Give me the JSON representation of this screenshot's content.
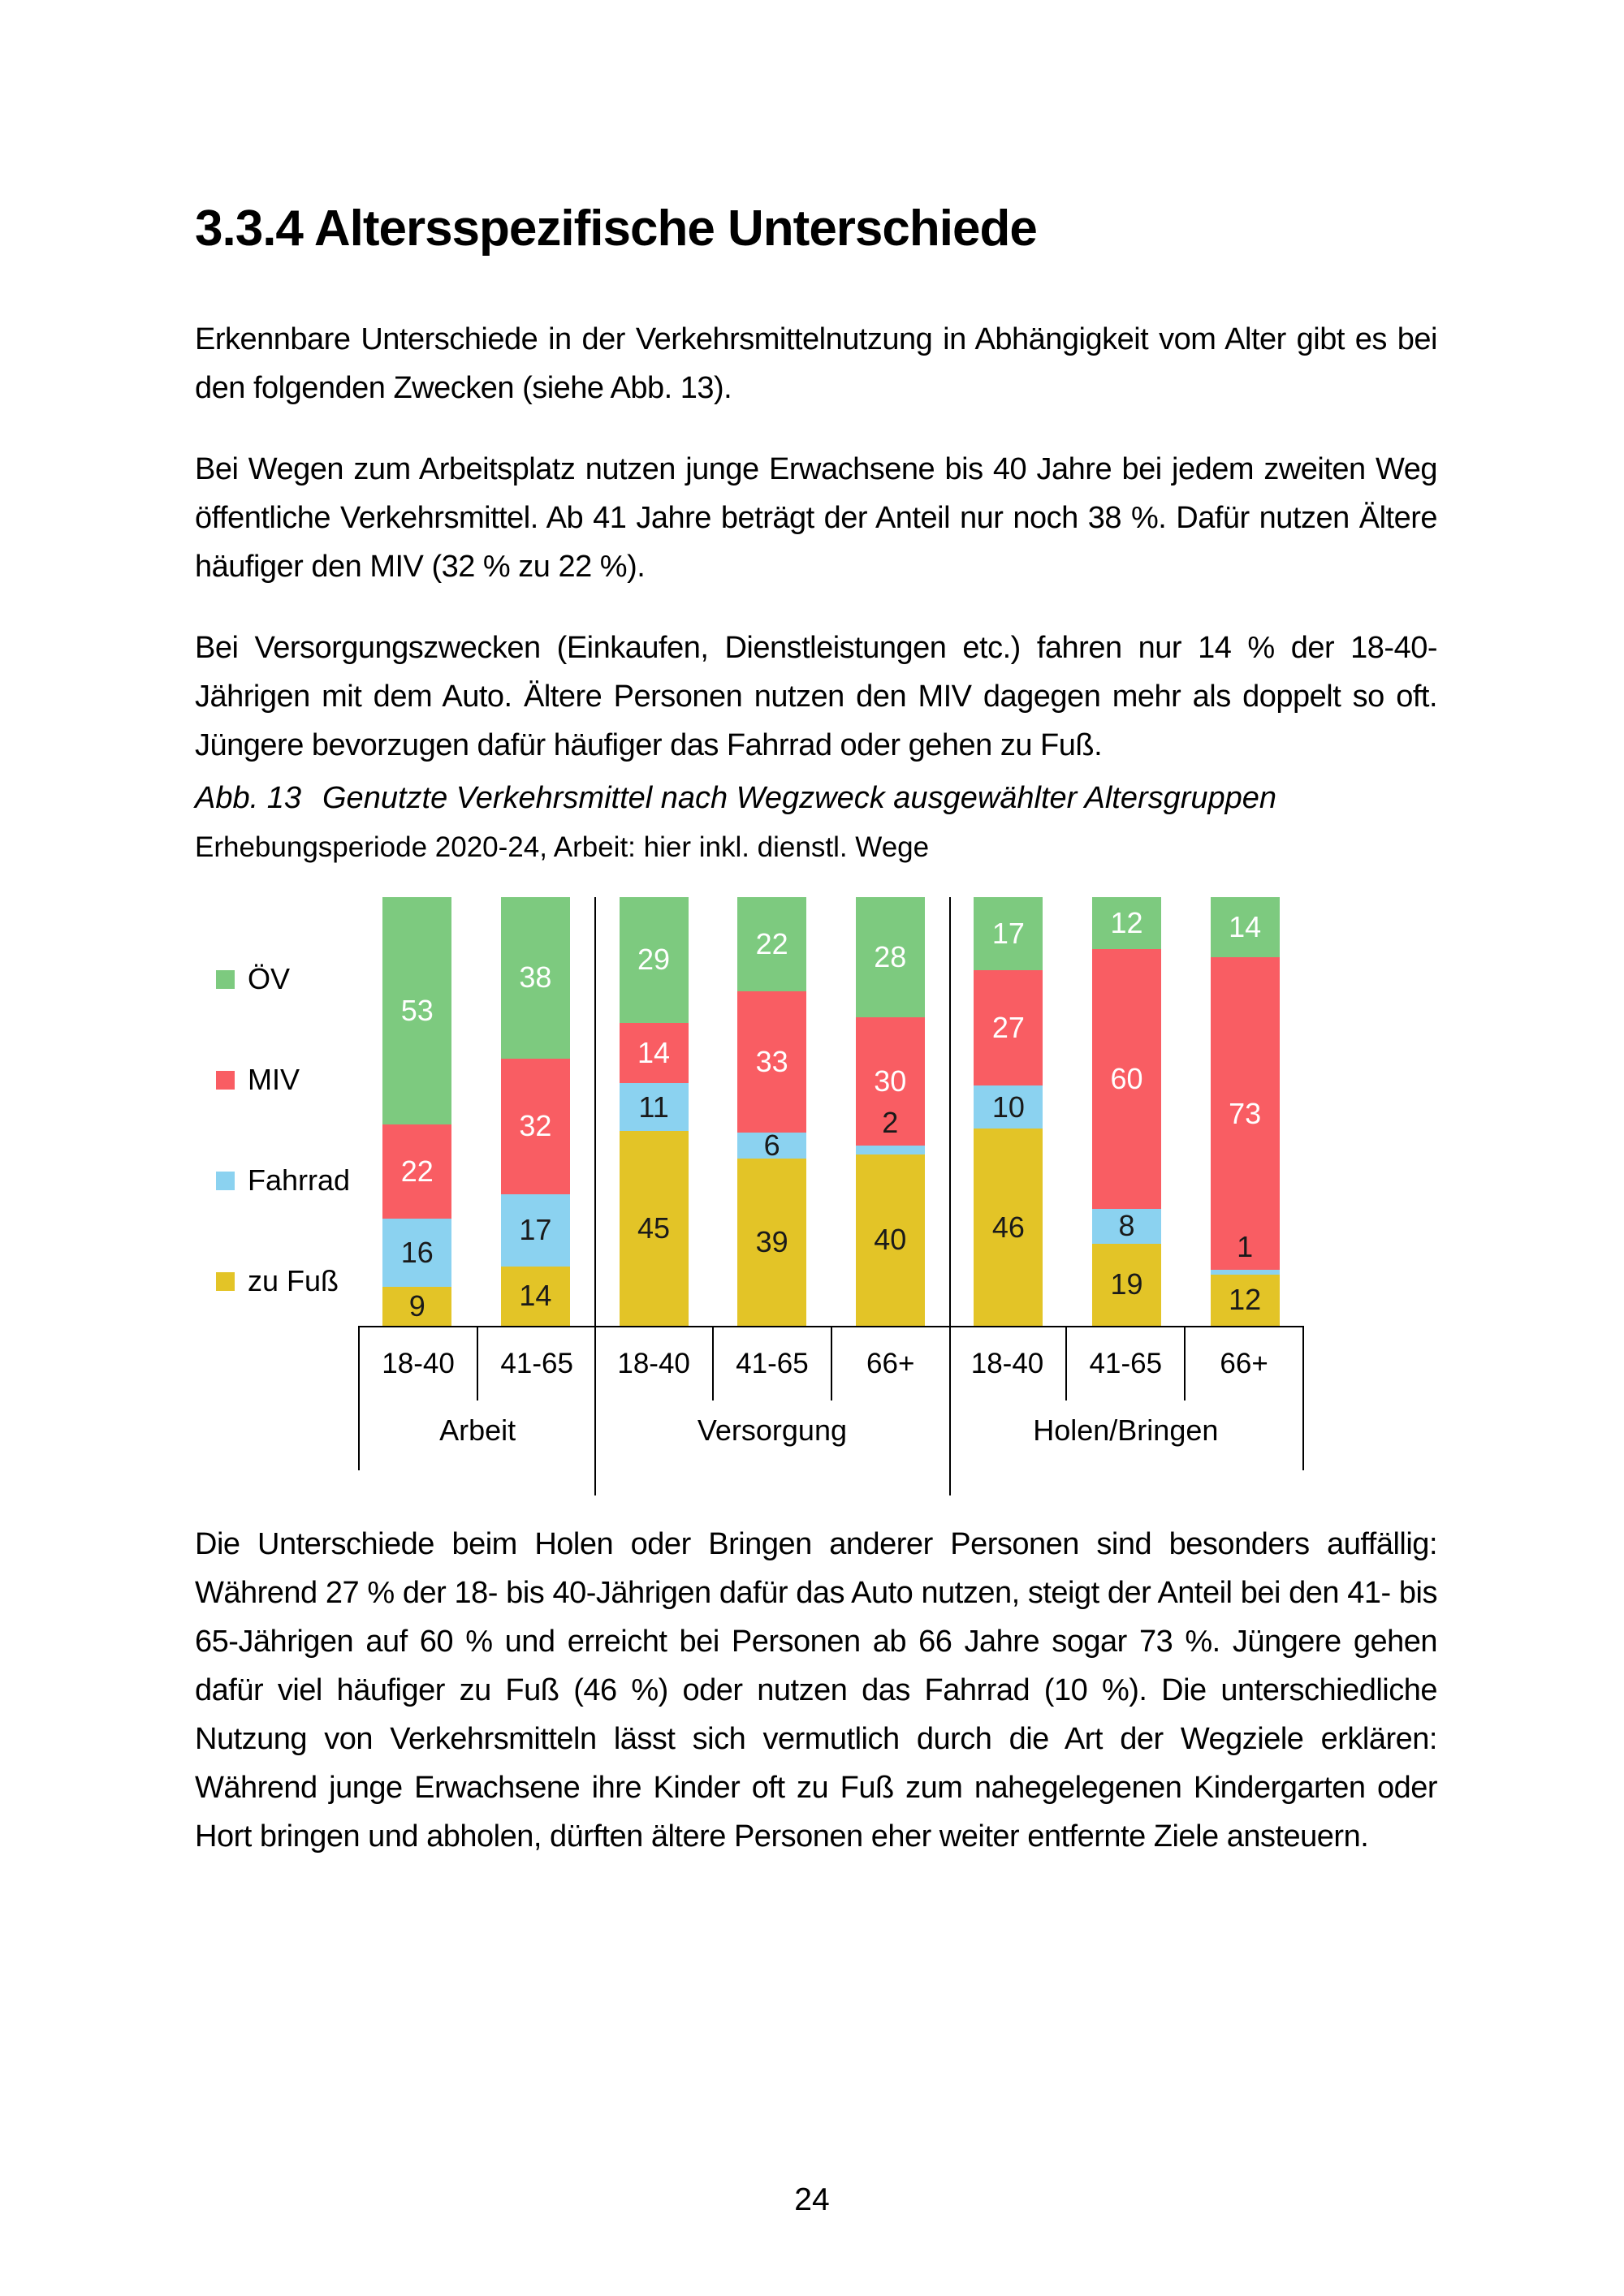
{
  "page": {
    "heading": "3.3.4 Altersspezifische Unterschiede",
    "paragraphs": [
      "Erkennbare Unterschiede in der Verkehrsmittelnutzung in Abhängigkeit vom Alter gibt es bei den folgenden Zwecken (siehe Abb. 13).",
      "Bei Wegen zum Arbeitsplatz nutzen junge Erwachsene bis 40 Jahre bei jedem zweiten Weg öffentliche Verkehrsmittel. Ab 41 Jahre beträgt der Anteil nur noch 38 %. Dafür nutzen Ältere häufiger den MIV (32 % zu 22 %).",
      "Bei Versorgungszwecken (Einkaufen, Dienstleistungen etc.) fahren nur 14 % der 18-40-Jährigen mit dem Auto. Ältere Personen nutzen den MIV dagegen mehr als doppelt so oft. Jüngere bevorzugen dafür häufiger das Fahrrad oder gehen zu Fuß."
    ],
    "paragraph_after_chart": "Die Unterschiede beim Holen oder Bringen anderer Personen sind besonders auffällig: Während 27 % der 18- bis 40-Jährigen dafür das Auto nutzen, steigt der Anteil bei den 41- bis 65-Jährigen auf 60 % und erreicht bei Personen ab 66 Jahre sogar 73 %. Jüngere gehen dafür viel häufiger zu Fuß (46 %) oder nutzen das Fahrrad (10 %). Die unterschiedliche Nutzung von Verkehrsmitteln lässt sich vermutlich durch die Art der Wegziele erklären: Während junge Erwachsene ihre Kinder oft zu Fuß zum nahegelegenen Kindergarten oder Hort bringen und abholen, dürften ältere Personen eher weiter entfernte Ziele ansteuern.",
    "page_number": "24"
  },
  "figure": {
    "caption_label": "Abb. 13",
    "caption_text": "Genutzte Verkehrsmittel nach Wegzweck ausgewählter Altersgruppen",
    "subcaption": "Erhebungsperiode 2020-24, Arbeit: hier inkl. dienstl. Wege"
  },
  "chart_data": {
    "type": "bar",
    "stacked": true,
    "stacked_mode": "percent",
    "title": "Genutzte Verkehrsmittel nach Wegzweck ausgewählter Altersgruppen",
    "subtitle": "Erhebungsperiode 2020-24, Arbeit: hier inkl. dienstl. Wege",
    "value_unit": "%",
    "ylim": [
      0,
      100
    ],
    "legend_position": "left",
    "grid": false,
    "categories": [
      "18-40",
      "41-65",
      "18-40",
      "41-65",
      "66+",
      "18-40",
      "41-65",
      "66+"
    ],
    "groups": [
      {
        "label": "Arbeit",
        "categories": [
          "18-40",
          "41-65"
        ]
      },
      {
        "label": "Versorgung",
        "categories": [
          "18-40",
          "41-65",
          "66+"
        ]
      },
      {
        "label": "Holen/Bringen",
        "categories": [
          "18-40",
          "41-65",
          "66+"
        ]
      }
    ],
    "bar_order_top_to_bottom": [
      "ÖV",
      "MIV",
      "Fahrrad",
      "zu Fuß"
    ],
    "series": [
      {
        "id": "oev",
        "name": "ÖV",
        "color": "#7DCA7F",
        "label_color": "#FFFFFF",
        "values": [
          53,
          38,
          29,
          22,
          28,
          17,
          12,
          14
        ]
      },
      {
        "id": "miv",
        "name": "MIV",
        "color": "#F95D63",
        "label_color": "#FFFFFF",
        "values": [
          22,
          32,
          14,
          33,
          30,
          27,
          60,
          73
        ]
      },
      {
        "id": "fahrrad",
        "name": "Fahrrad",
        "color": "#8BD2F0",
        "label_color": "#1A1A1A",
        "values": [
          16,
          17,
          11,
          6,
          2,
          10,
          8,
          1
        ]
      },
      {
        "id": "zu-fuss",
        "name": "zu Fuß",
        "color": "#E3C427",
        "label_color": "#1A1A1A",
        "values": [
          9,
          14,
          45,
          39,
          40,
          46,
          19,
          12
        ]
      }
    ]
  }
}
